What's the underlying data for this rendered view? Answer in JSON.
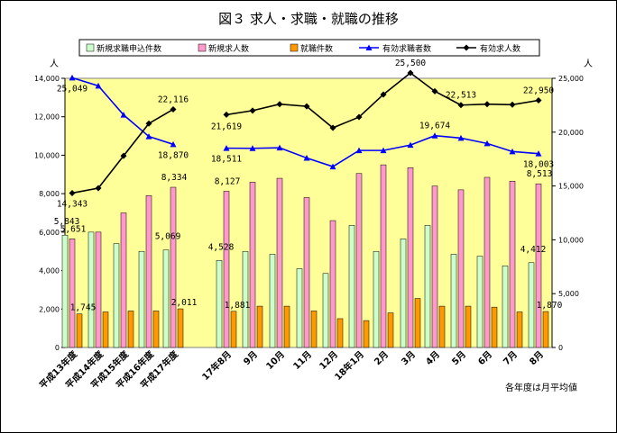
{
  "chart_data": {
    "type": "bar",
    "title": "図３ 求人・求職・就職の推移",
    "left_unit": "人",
    "right_unit": "人",
    "note": "各年度は月平均値",
    "categories": [
      "平成13年度",
      "平成14年度",
      "平成15年度",
      "平成16年度",
      "平成17年度",
      "",
      "17年8月",
      "9月",
      "10月",
      "11月",
      "12月",
      "18年1月",
      "2月",
      "3月",
      "4月",
      "5月",
      "6月",
      "7月",
      "8月"
    ],
    "left_axis": {
      "ylim": [
        0,
        14000
      ],
      "ticks": [
        "0",
        "2,000",
        "4,000",
        "6,000",
        "8,000",
        "10,000",
        "12,000",
        "14,000"
      ]
    },
    "right_axis": {
      "ylim": [
        0,
        25000
      ],
      "ticks": [
        "0",
        "5,000",
        "10,000",
        "15,000",
        "20,000",
        "25,000"
      ]
    },
    "series": [
      {
        "name": "新規求職申込件数",
        "type": "bar",
        "axis": "left",
        "color": "#ccffcc",
        "values": [
          5843,
          6000,
          5400,
          5000,
          5069,
          null,
          4528,
          5000,
          4850,
          4100,
          3850,
          6350,
          5000,
          5650,
          6350,
          4850,
          4750,
          4250,
          4412
        ]
      },
      {
        "name": "新規求人数",
        "type": "bar",
        "axis": "left",
        "color": "#ff99cc",
        "values": [
          5651,
          6000,
          7000,
          7900,
          8334,
          null,
          8127,
          8600,
          8800,
          7800,
          6600,
          9050,
          9500,
          9350,
          8400,
          8200,
          8850,
          8650,
          8513
        ]
      },
      {
        "name": "就職件数",
        "type": "bar",
        "axis": "left",
        "color": "#ff9900",
        "values": [
          1745,
          1850,
          1900,
          1900,
          2011,
          null,
          1881,
          2150,
          2150,
          1900,
          1500,
          1400,
          1800,
          2550,
          2150,
          2150,
          2100,
          1850,
          1870
        ]
      },
      {
        "name": "有効求職者数",
        "type": "line",
        "axis": "right",
        "color": "#0000ff",
        "marker": "triangle",
        "values": [
          25049,
          24300,
          21600,
          19600,
          18870,
          null,
          18511,
          18500,
          18550,
          17600,
          16800,
          18300,
          18300,
          18800,
          19674,
          19450,
          18950,
          18200,
          18003
        ]
      },
      {
        "name": "有効求人数",
        "type": "line",
        "axis": "right",
        "color": "#000000",
        "marker": "diamond",
        "values": [
          14343,
          14800,
          17800,
          20800,
          22116,
          null,
          21619,
          22000,
          22600,
          22400,
          20400,
          21400,
          23500,
          25500,
          23800,
          22513,
          22600,
          22550,
          22950
        ]
      }
    ],
    "data_labels": [
      {
        "series": 0,
        "index": 0,
        "text": "5,843"
      },
      {
        "series": 1,
        "index": 0,
        "text": "5,651"
      },
      {
        "series": 2,
        "index": 0,
        "text": "1,745"
      },
      {
        "series": 0,
        "index": 4,
        "text": "5,069"
      },
      {
        "series": 1,
        "index": 4,
        "text": "8,334"
      },
      {
        "series": 2,
        "index": 4,
        "text": "2,011"
      },
      {
        "series": 0,
        "index": 6,
        "text": "4,528"
      },
      {
        "series": 1,
        "index": 6,
        "text": "8,127"
      },
      {
        "series": 2,
        "index": 6,
        "text": "1,881"
      },
      {
        "series": 0,
        "index": 18,
        "text": "4,412"
      },
      {
        "series": 1,
        "index": 18,
        "text": "8,513"
      },
      {
        "series": 2,
        "index": 18,
        "text": "1,870"
      },
      {
        "series": 3,
        "index": 0,
        "text": "25,049"
      },
      {
        "series": 4,
        "index": 0,
        "text": "14,343"
      },
      {
        "series": 3,
        "index": 4,
        "text": "18,870"
      },
      {
        "series": 4,
        "index": 4,
        "text": "22,116"
      },
      {
        "series": 3,
        "index": 6,
        "text": "18,511"
      },
      {
        "series": 4,
        "index": 6,
        "text": "21,619"
      },
      {
        "series": 4,
        "index": 13,
        "text": "25,500"
      },
      {
        "series": 3,
        "index": 14,
        "text": "19,674"
      },
      {
        "series": 4,
        "index": 15,
        "text": "22,513"
      },
      {
        "series": 3,
        "index": 18,
        "text": "18,003"
      },
      {
        "series": 4,
        "index": 18,
        "text": "22,950"
      }
    ],
    "legend_position": "top",
    "grid": false,
    "plot_background": "#ffff99"
  }
}
